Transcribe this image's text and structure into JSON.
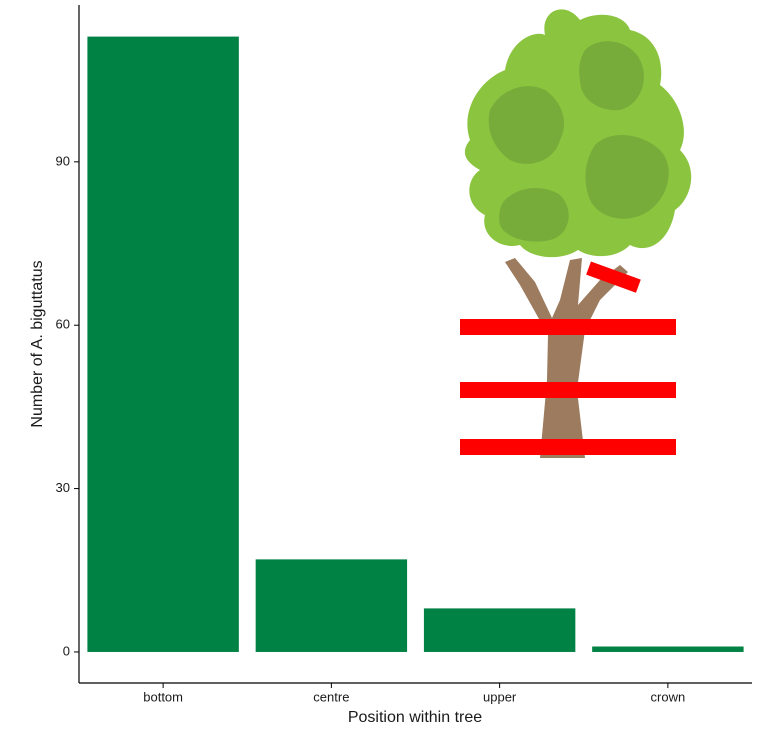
{
  "chart_data": {
    "type": "bar",
    "x_label": "Position within tree",
    "y_label": "Number of A. biguttatus",
    "categories": [
      "bottom",
      "centre",
      "upper",
      "crown"
    ],
    "values": [
      113,
      17,
      8,
      1
    ],
    "color": "#008245",
    "ylim": [
      -5.7,
      118.8
    ],
    "yticks": [
      0,
      30,
      60,
      90
    ],
    "grid": false
  }
}
